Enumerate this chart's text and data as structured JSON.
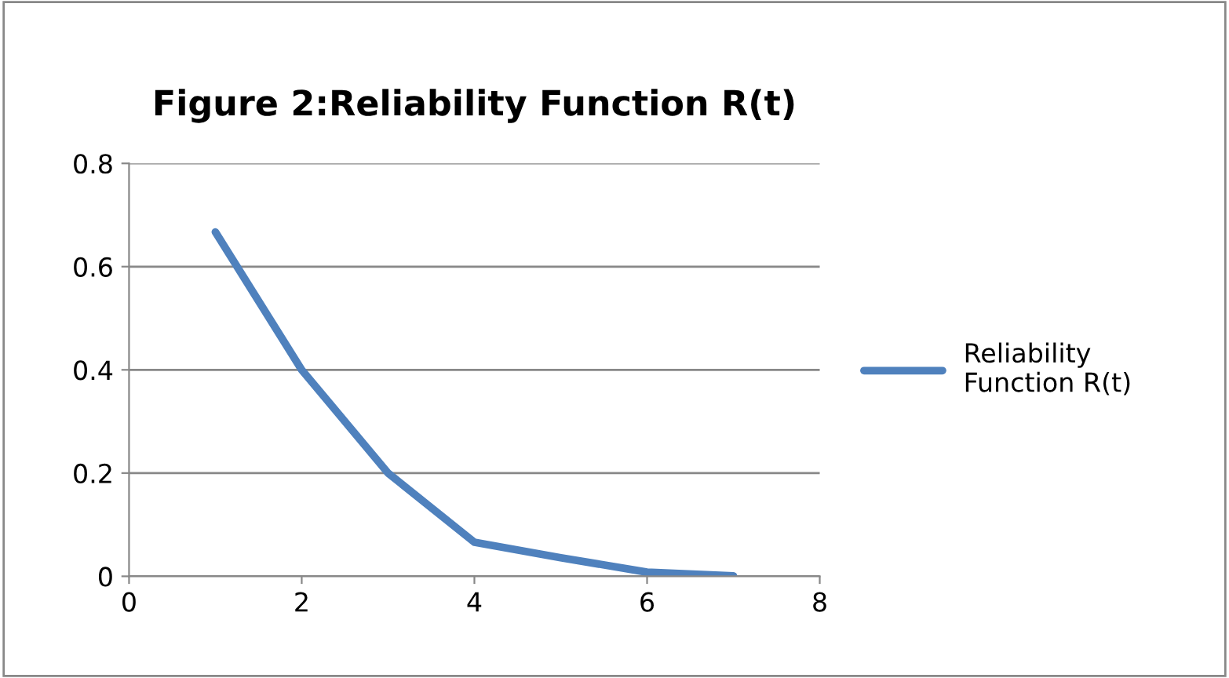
{
  "chart_data": {
    "type": "line",
    "title": "Figure 2:Reliability Function R(t)",
    "x": [
      1,
      2,
      3,
      4,
      5,
      6,
      7
    ],
    "series": [
      {
        "name": "Reliability\nFunction R(t)",
        "color": "#4f81bd",
        "values": [
          0.667,
          0.4,
          0.2,
          0.066,
          0.036,
          0.008,
          0.001
        ]
      }
    ],
    "xlim": [
      0,
      8
    ],
    "xticks": [
      0,
      2,
      4,
      6,
      8
    ],
    "ylim": [
      0,
      0.8
    ],
    "yticks": [
      0,
      0.2,
      0.4,
      0.6,
      0.8
    ],
    "grid": "y",
    "legend": "right",
    "marker": "none",
    "line_style": "solid"
  }
}
